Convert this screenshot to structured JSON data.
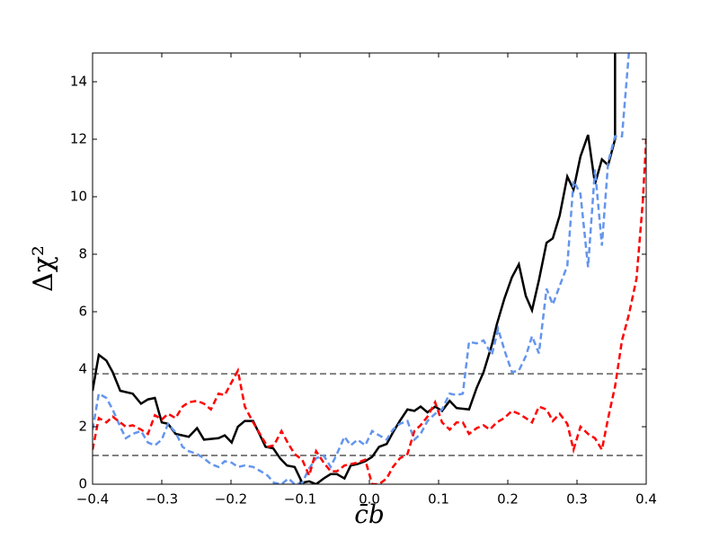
{
  "chart_data": {
    "type": "line",
    "xlabel": "c̄b",
    "ylabel": "Δχ²",
    "xlim": [
      -0.4,
      0.4
    ],
    "ylim": [
      0,
      15
    ],
    "xticks": [
      {
        "value": -0.4,
        "label": "−0.4"
      },
      {
        "value": -0.3,
        "label": "−0.3"
      },
      {
        "value": -0.2,
        "label": "−0.2"
      },
      {
        "value": -0.1,
        "label": "−0.1"
      },
      {
        "value": 0,
        "label": "0.0"
      },
      0.1,
      0.2,
      0.3,
      0.4
    ],
    "yticks": [
      0,
      2,
      4,
      6,
      8,
      10,
      12,
      14
    ],
    "hlines": [
      1,
      3.84
    ],
    "hline_color": "#808080",
    "series": [
      {
        "color": "#000000",
        "style": "solid",
        "x": [
          -0.4,
          -0.391,
          -0.38,
          -0.371,
          -0.36,
          -0.342,
          -0.33,
          -0.32,
          -0.31,
          -0.3,
          -0.291,
          -0.28,
          -0.261,
          -0.249,
          -0.239,
          -0.218,
          -0.209,
          -0.199,
          -0.19,
          -0.18,
          -0.168,
          -0.15,
          -0.139,
          -0.129,
          -0.119,
          -0.108,
          -0.097,
          -0.087,
          -0.077,
          -0.066,
          -0.056,
          -0.047,
          -0.036,
          -0.027,
          -0.017,
          -0.006,
          0.004,
          0.014,
          0.025,
          0.034,
          0.044,
          0.055,
          0.065,
          0.074,
          0.084,
          0.095,
          0.105,
          0.116,
          0.126,
          0.144,
          0.155,
          0.165,
          0.177,
          0.184,
          0.195,
          0.206,
          0.216,
          0.226,
          0.235,
          0.245,
          0.256,
          0.265,
          0.275,
          0.286,
          0.295,
          0.305,
          0.316,
          0.326,
          0.336,
          0.345,
          0.355,
          0.355
        ],
        "values": [
          3.25,
          4.5,
          4.3,
          3.9,
          3.25,
          3.15,
          2.8,
          2.95,
          3.0,
          2.15,
          2.1,
          1.75,
          1.65,
          1.95,
          1.55,
          1.6,
          1.7,
          1.45,
          2.0,
          2.2,
          2.2,
          1.3,
          1.25,
          0.9,
          0.65,
          0.6,
          0.05,
          0.1,
          0,
          0.2,
          0.35,
          0.35,
          0.2,
          0.65,
          0.7,
          0.8,
          0.95,
          1.3,
          1.4,
          1.8,
          2.2,
          2.6,
          2.55,
          2.7,
          2.5,
          2.7,
          2.55,
          2.9,
          2.65,
          2.6,
          3.35,
          3.9,
          4.85,
          5.55,
          6.45,
          7.2,
          7.65,
          6.55,
          6.05,
          7.1,
          8.4,
          8.55,
          9.35,
          10.7,
          10.25,
          11.4,
          12.15,
          10.45,
          11.3,
          11.1,
          12.0,
          15
        ]
      },
      {
        "color": "#6495ed",
        "style": "dashed",
        "x": [
          -0.4,
          -0.391,
          -0.38,
          -0.371,
          -0.36,
          -0.352,
          -0.342,
          -0.33,
          -0.32,
          -0.31,
          -0.3,
          -0.291,
          -0.28,
          -0.27,
          -0.261,
          -0.249,
          -0.239,
          -0.229,
          -0.218,
          -0.209,
          -0.199,
          -0.19,
          -0.18,
          -0.168,
          -0.157,
          -0.147,
          -0.138,
          -0.127,
          -0.117,
          -0.108,
          -0.097,
          -0.087,
          -0.077,
          -0.066,
          -0.056,
          -0.047,
          -0.036,
          -0.027,
          -0.017,
          -0.006,
          0.004,
          0.014,
          0.025,
          0.034,
          0.044,
          0.055,
          0.065,
          0.074,
          0.084,
          0.095,
          0.105,
          0.116,
          0.126,
          0.135,
          0.144,
          0.155,
          0.165,
          0.177,
          0.186,
          0.196,
          0.206,
          0.216,
          0.226,
          0.235,
          0.245,
          0.256,
          0.265,
          0.275,
          0.286,
          0.295,
          0.305,
          0.316,
          0.326,
          0.336,
          0.345,
          0.355,
          0.365,
          0.375
        ],
        "values": [
          1.9,
          3.15,
          3.0,
          2.6,
          2.0,
          1.6,
          1.75,
          1.85,
          1.45,
          1.35,
          1.55,
          2.1,
          1.8,
          1.3,
          1.15,
          1.05,
          0.9,
          0.7,
          0.6,
          0.8,
          0.75,
          0.6,
          0.65,
          0.6,
          0.45,
          0.3,
          0.05,
          0,
          0.2,
          0,
          0.05,
          0.55,
          0.9,
          1.0,
          0.6,
          1.05,
          1.65,
          1.35,
          1.55,
          1.35,
          1.85,
          1.7,
          1.55,
          1.9,
          2.1,
          2.2,
          1.55,
          1.75,
          2.2,
          2.45,
          2.6,
          3.15,
          3.1,
          3.15,
          4.95,
          4.9,
          5.0,
          4.5,
          5.4,
          4.6,
          3.9,
          3.95,
          4.45,
          5.15,
          4.55,
          6.8,
          6.25,
          6.9,
          7.6,
          10.55,
          10.1,
          7.55,
          10.95,
          8.3,
          11.2,
          12.1,
          12.1,
          15
        ]
      },
      {
        "color": "#ff0000",
        "style": "dashed",
        "x": [
          -0.4,
          -0.391,
          -0.38,
          -0.371,
          -0.36,
          -0.352,
          -0.342,
          -0.33,
          -0.32,
          -0.31,
          -0.3,
          -0.291,
          -0.28,
          -0.27,
          -0.261,
          -0.249,
          -0.239,
          -0.229,
          -0.218,
          -0.209,
          -0.199,
          -0.19,
          -0.18,
          -0.168,
          -0.157,
          -0.147,
          -0.138,
          -0.127,
          -0.117,
          -0.108,
          -0.097,
          -0.087,
          -0.077,
          -0.066,
          -0.056,
          -0.047,
          -0.036,
          -0.027,
          -0.017,
          -0.006,
          0.004,
          0.014,
          0.025,
          0.034,
          0.044,
          0.055,
          0.065,
          0.074,
          0.084,
          0.095,
          0.105,
          0.116,
          0.126,
          0.135,
          0.144,
          0.155,
          0.165,
          0.174,
          0.184,
          0.195,
          0.206,
          0.216,
          0.226,
          0.235,
          0.245,
          0.256,
          0.265,
          0.275,
          0.286,
          0.295,
          0.305,
          0.316,
          0.326,
          0.336,
          0.345,
          0.355,
          0.365,
          0.375,
          0.386,
          0.395,
          0.4
        ],
        "values": [
          1.2,
          2.3,
          2.15,
          2.35,
          2.15,
          2.0,
          2.05,
          1.9,
          1.75,
          2.4,
          2.25,
          2.45,
          2.3,
          2.7,
          2.85,
          2.9,
          2.8,
          2.6,
          3.15,
          3.1,
          3.55,
          3.95,
          2.7,
          2.15,
          1.7,
          1.3,
          1.35,
          1.85,
          1.4,
          1.05,
          0.85,
          0.3,
          1.15,
          0.75,
          0.45,
          0.45,
          0.65,
          0.7,
          0.75,
          0.85,
          0,
          0,
          0.2,
          0.6,
          0.9,
          1.05,
          1.85,
          2.05,
          2.35,
          2.85,
          2.15,
          1.9,
          2.15,
          2.15,
          1.75,
          1.95,
          2.05,
          1.9,
          2.15,
          2.3,
          2.55,
          2.45,
          2.3,
          2.15,
          2.7,
          2.6,
          2.2,
          2.45,
          2.1,
          1.2,
          2.0,
          1.75,
          1.6,
          1.2,
          2.3,
          3.4,
          5.0,
          5.9,
          7.15,
          9.8,
          12.0
        ]
      }
    ]
  }
}
